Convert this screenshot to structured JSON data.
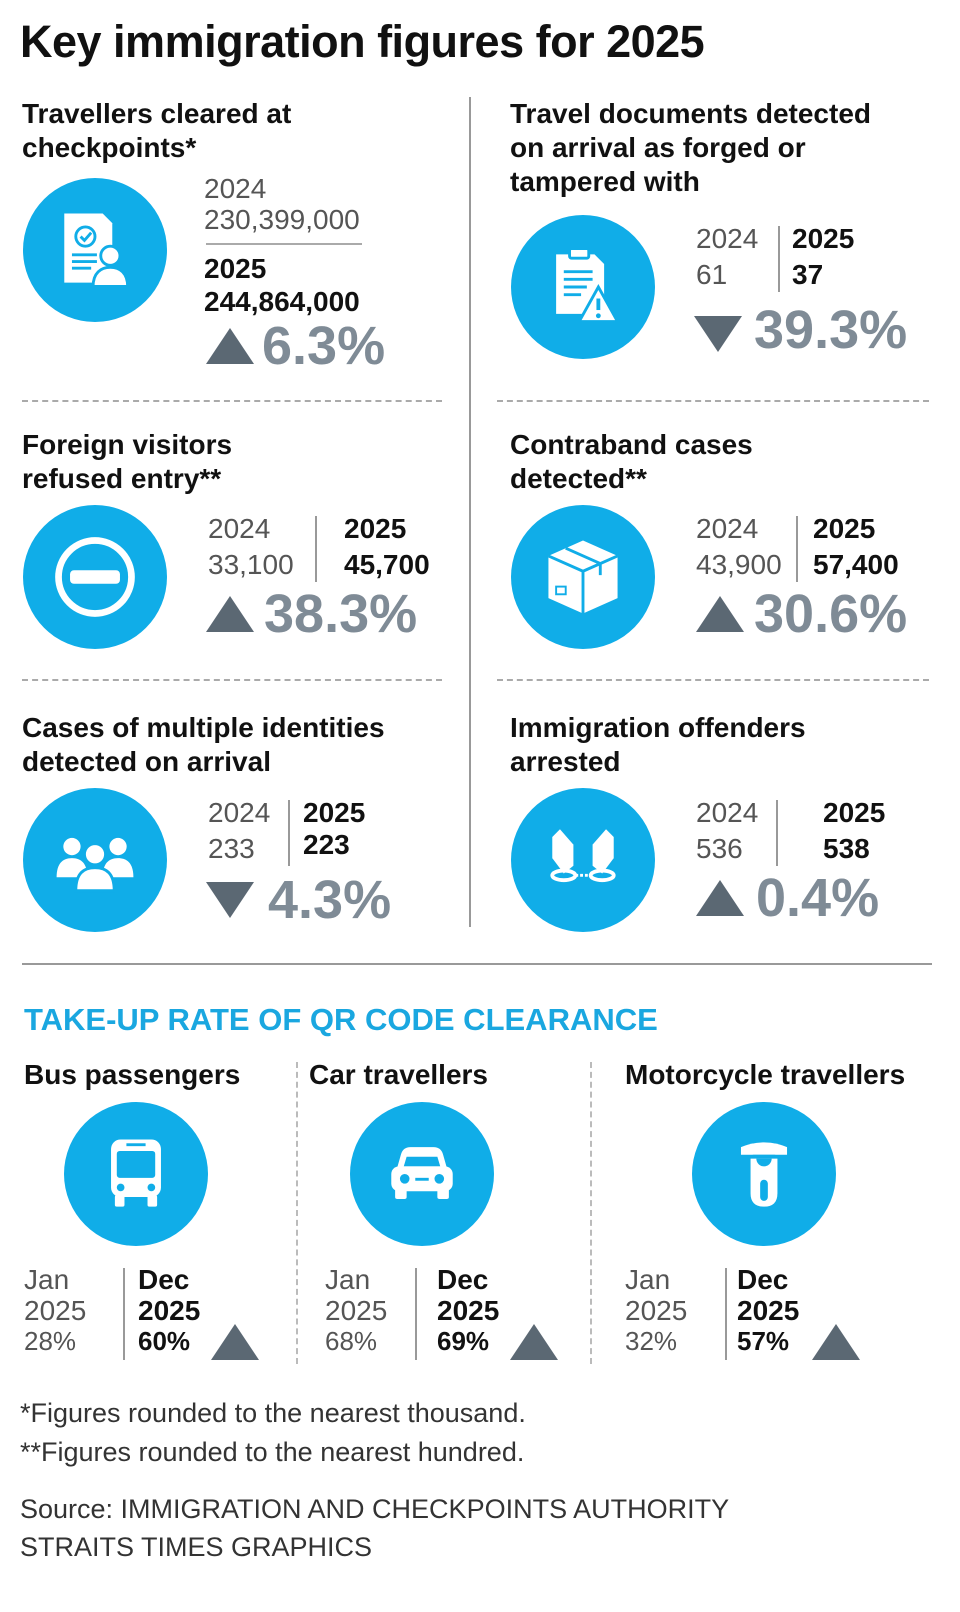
{
  "title": "Key immigration figures for 2025",
  "colors": {
    "accent": "#10ade8",
    "pct": "#7f8b96",
    "arrow": "#5b6873"
  },
  "cards": [
    {
      "heading": [
        "Travellers cleared at",
        "checkpoints*"
      ],
      "icon": "document-person-icon",
      "y1": "2024",
      "v1": "230,399,000",
      "y2": "2025",
      "v2": "244,864,000",
      "dir": "up",
      "pct": "6.3%"
    },
    {
      "heading": [
        "Travel documents detected",
        "on arrival as forged or",
        "tampered with"
      ],
      "icon": "document-warning-icon",
      "y1": "2024",
      "v1": "61",
      "y2": "2025",
      "v2": "37",
      "dir": "down",
      "pct": "39.3%"
    },
    {
      "heading": [
        "Foreign visitors",
        "refused entry**"
      ],
      "icon": "no-entry-icon",
      "y1": "2024",
      "v1": "33,100",
      "y2": "2025",
      "v2": "45,700",
      "dir": "up",
      "pct": "38.3%"
    },
    {
      "heading": [
        "Contraband cases",
        "detected**"
      ],
      "icon": "package-icon",
      "y1": "2024",
      "v1": "43,900",
      "y2": "2025",
      "v2": "57,400",
      "dir": "up",
      "pct": "30.6%"
    },
    {
      "heading": [
        "Cases of multiple identities",
        "detected on arrival"
      ],
      "icon": "people-group-icon",
      "y1": "2024",
      "v1": "233",
      "y2": "2025",
      "v2": "223",
      "dir": "down",
      "pct": "4.3%"
    },
    {
      "heading": [
        "Immigration offenders",
        "arrested"
      ],
      "icon": "handcuffs-icon",
      "y1": "2024",
      "v1": "536",
      "y2": "2025",
      "v2": "538",
      "dir": "up",
      "pct": "0.4%"
    }
  ],
  "qr": {
    "title": "TAKE-UP RATE OF QR CODE CLEARANCE",
    "items": [
      {
        "label": "Bus passengers",
        "icon": "bus-icon",
        "m1": "Jan",
        "y1": "2025",
        "v1": "28%",
        "m2": "Dec",
        "y2": "2025",
        "v2": "60%",
        "dir": "up"
      },
      {
        "label": "Car travellers",
        "icon": "car-icon",
        "m1": "Jan",
        "y1": "2025",
        "v1": "68%",
        "m2": "Dec",
        "y2": "2025",
        "v2": "69%",
        "dir": "up"
      },
      {
        "label": "Motorcycle travellers",
        "icon": "scooter-icon",
        "m1": "Jan",
        "y1": "2025",
        "v1": "32%",
        "m2": "Dec",
        "y2": "2025",
        "v2": "57%",
        "dir": "up"
      }
    ]
  },
  "footnotes": [
    "*Figures rounded to the nearest thousand.",
    "**Figures rounded to the nearest hundred."
  ],
  "source": [
    "Source: IMMIGRATION AND CHECKPOINTS AUTHORITY",
    "STRAITS TIMES GRAPHICS"
  ]
}
